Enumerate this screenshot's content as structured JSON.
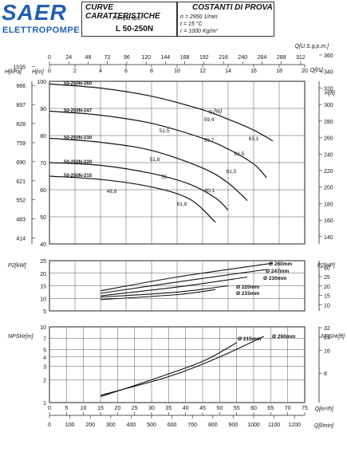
{
  "header": {
    "logo_main": "SAER",
    "logo_sub": "ELETTROPOMPE",
    "box1_title": "CURVE CARATTERISTICHE",
    "box1_label": "Pompa tipo",
    "box1_model": "L 50-250N",
    "box2_title": "COSTANTI DI PROVA",
    "box2_lines": [
      "n = 2950 1/min",
      "t = 15  °C",
      "r = 1000 Kg/m³"
    ]
  },
  "colors": {
    "curve": "#111111",
    "grid": "#555555",
    "logo": "#1e5fb3"
  },
  "chart_data": [
    {
      "name": "head-chart",
      "type": "line",
      "xlim": [
        0,
        20
      ],
      "xlabel_bottom": "Q[l/s]",
      "xticks_bottom": [
        "0",
        "2",
        "4",
        "6",
        "8",
        "10",
        "12",
        "14",
        "16",
        "18",
        "20"
      ],
      "xlabel_top": "Q[U.S.g.p.m.]",
      "xticks_top": [
        "0",
        "24",
        "48",
        "72",
        "96",
        "120",
        "144",
        "168",
        "192",
        "216",
        "240",
        "264",
        "288",
        "312"
      ],
      "ylabel_left": "H[m]",
      "ylim": [
        40,
        100
      ],
      "yticks": [
        "40",
        "50",
        "60",
        "70",
        "80",
        "90",
        "100"
      ],
      "ylabel_left2": "H[kPa]",
      "yticks_kpa": [
        "414",
        "483",
        "552",
        "621",
        "690",
        "759",
        "828",
        "897",
        "966",
        "1035"
      ],
      "ylabel_right": "H[ft]",
      "yticks_ft": [
        "140",
        "160",
        "180",
        "200",
        "220",
        "240",
        "260",
        "280",
        "300",
        "320",
        "340",
        "360"
      ],
      "series": [
        {
          "name": "50-250N-260",
          "x": [
            0,
            4,
            8,
            12,
            14,
            16,
            17.5
          ],
          "y": [
            99,
            97.5,
            94.5,
            89.5,
            86,
            82,
            78
          ]
        },
        {
          "name": "50-250N-247",
          "x": [
            0,
            4,
            8,
            12,
            14,
            16,
            17
          ],
          "y": [
            89,
            87.5,
            84.5,
            79,
            75,
            69.5,
            64.5
          ]
        },
        {
          "name": "50-250N-230",
          "x": [
            0,
            4,
            8,
            12,
            14,
            15.5
          ],
          "y": [
            79,
            77.5,
            74.5,
            68,
            62.5,
            56
          ]
        },
        {
          "name": "50-250N-220",
          "x": [
            0,
            4,
            8,
            11,
            13,
            14
          ],
          "y": [
            70,
            69,
            66,
            62,
            57,
            52.5
          ]
        },
        {
          "name": "50-250N-215",
          "x": [
            0,
            4,
            8,
            11,
            13
          ],
          "y": [
            65,
            63.8,
            61,
            56.5,
            48
          ]
        }
      ],
      "efficiency_label": "η [%]",
      "efficiency": [
        "63,1",
        "59,4",
        "61,5",
        "59,7",
        "51,5",
        "51,8",
        "61,5",
        "60,1",
        "55",
        "61,8",
        "48,8"
      ]
    },
    {
      "name": "power-chart",
      "type": "line",
      "xlim": [
        0,
        20
      ],
      "ylabel_left": "P2[kW]",
      "ylim": [
        5,
        25
      ],
      "yticks": [
        "5",
        "10",
        "15",
        "20",
        "25"
      ],
      "ylabel_right": "P2[HP]",
      "yticks_hp": [
        "10",
        "15",
        "20",
        "25",
        "30"
      ],
      "series": [
        {
          "name": "Ø 260mm",
          "x": [
            4,
            10,
            17.5
          ],
          "y": [
            13,
            18.5,
            24
          ]
        },
        {
          "name": "Ø 247mm",
          "x": [
            4,
            10,
            17
          ],
          "y": [
            12,
            16.5,
            21.5
          ]
        },
        {
          "name": "Ø 230mm",
          "x": [
            4,
            10,
            15.5
          ],
          "y": [
            11,
            14.5,
            18.5
          ]
        },
        {
          "name": "Ø 220mm",
          "x": [
            4,
            10,
            14
          ],
          "y": [
            10.5,
            12.5,
            15
          ]
        },
        {
          "name": "Ø 215mm",
          "x": [
            4,
            10,
            13
          ],
          "y": [
            9.5,
            11.5,
            13.5
          ]
        }
      ]
    },
    {
      "name": "npsh-chart",
      "type": "line",
      "ylabel_left": "NPSHr[m]",
      "ylim_log": [
        1,
        10
      ],
      "yticks": [
        "1",
        "2",
        "3",
        "4",
        "5",
        "7",
        "10"
      ],
      "ylabel_right": "NPSHr[ft]",
      "yticks_ft": [
        "8",
        "16",
        "24",
        "32"
      ],
      "xlabel_m3h": "Q[m³/h]",
      "xlim_m3h": [
        0,
        75
      ],
      "xticks_m3h": [
        "0",
        "5",
        "10",
        "15",
        "20",
        "25",
        "30",
        "35",
        "40",
        "45",
        "50",
        "55",
        "60",
        "65",
        "70",
        "75"
      ],
      "xlabel_lmin": "Q[l/min]",
      "xticks_lmin": [
        "0",
        "100",
        "200",
        "300",
        "400",
        "500",
        "600",
        "700",
        "800",
        "900",
        "1000",
        "1100",
        "1200"
      ],
      "series": [
        {
          "name": "Ø 215mm",
          "x": [
            15,
            30,
            45,
            55
          ],
          "y": [
            1.2,
            2.0,
            3.5,
            6.2
          ]
        },
        {
          "name": "Ø 260mm",
          "x": [
            15,
            35,
            50,
            63
          ],
          "y": [
            1.25,
            2.2,
            4.0,
            7.5
          ]
        }
      ]
    }
  ]
}
